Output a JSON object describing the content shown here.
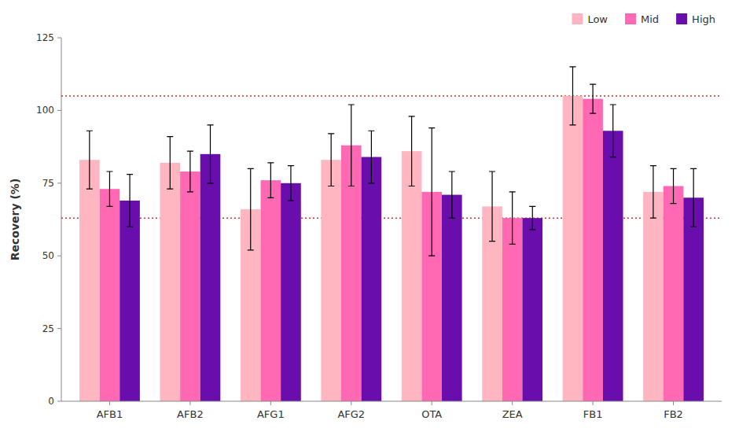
{
  "chart_data": {
    "type": "bar",
    "categories": [
      "AFB1",
      "AFB2",
      "AFG1",
      "AFG2",
      "OTA",
      "ZEA",
      "FB1",
      "FB2"
    ],
    "series": [
      {
        "name": "Low",
        "color": "#FFB6C1",
        "values": [
          83,
          82,
          66,
          83,
          86,
          67,
          105,
          72
        ],
        "errors": [
          10,
          9,
          14,
          9,
          12,
          12,
          10,
          9
        ]
      },
      {
        "name": "Mid",
        "color": "#FF69B4",
        "values": [
          73,
          79,
          76,
          88,
          72,
          63,
          104,
          74
        ],
        "errors": [
          6,
          7,
          6,
          14,
          22,
          9,
          5,
          6
        ]
      },
      {
        "name": "High",
        "color": "#6A0DAD",
        "values": [
          69,
          85,
          75,
          84,
          71,
          63,
          93,
          70
        ],
        "errors": [
          9,
          10,
          6,
          9,
          8,
          4,
          9,
          10
        ]
      }
    ],
    "hlines": [
      {
        "value": 105,
        "color": "#C0392B",
        "line_style": "dotted"
      },
      {
        "value": 63,
        "color": "#C0392B",
        "line_style": "dotted"
      }
    ],
    "ylabel": "Recovery (%)",
    "ylim": [
      0,
      125
    ],
    "yticks": [
      0,
      25,
      50,
      75,
      100,
      125
    ],
    "grid": false,
    "legend": "upper right"
  }
}
